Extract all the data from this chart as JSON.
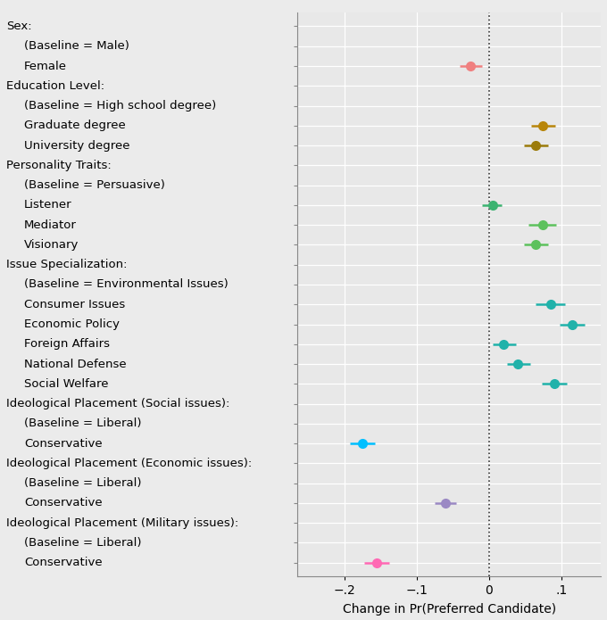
{
  "labels": [
    "Sex:",
    "  (Baseline = Male)",
    "  Female",
    "Education Level:",
    "  (Baseline = High school degree)",
    "  Graduate degree",
    "  University degree",
    "Personality Traits:",
    "  (Baseline = Persuasive)",
    "  Listener",
    "  Mediator",
    "  Visionary",
    "Issue Specialization:",
    "  (Baseline = Environmental Issues)",
    "  Consumer Issues",
    "  Economic Policy",
    "  Foreign Affairs",
    "  National Defense",
    "  Social Welfare",
    "Ideological Placement (Social issues):",
    "  (Baseline = Liberal)",
    "  Conservative",
    "Ideological Placement (Economic issues):",
    "  (Baseline = Liberal)",
    "  Conservative",
    "Ideological Placement (Military issues):",
    "  (Baseline = Liberal)",
    "  Conservative"
  ],
  "points": [
    null,
    null,
    -0.025,
    null,
    null,
    0.075,
    0.065,
    null,
    null,
    0.005,
    0.075,
    0.065,
    null,
    null,
    0.085,
    0.115,
    0.02,
    0.04,
    0.09,
    null,
    null,
    -0.175,
    null,
    null,
    -0.06,
    null,
    null,
    -0.155
  ],
  "ci_low": [
    null,
    null,
    -0.04,
    null,
    null,
    0.058,
    0.048,
    null,
    null,
    -0.01,
    0.055,
    0.048,
    null,
    null,
    0.065,
    0.098,
    0.005,
    0.025,
    0.073,
    null,
    null,
    -0.192,
    null,
    null,
    -0.075,
    null,
    null,
    -0.172
  ],
  "ci_high": [
    null,
    null,
    -0.01,
    null,
    null,
    0.092,
    0.082,
    null,
    null,
    0.018,
    0.093,
    0.082,
    null,
    null,
    0.105,
    0.133,
    0.038,
    0.057,
    0.108,
    null,
    null,
    -0.158,
    null,
    null,
    -0.045,
    null,
    null,
    -0.138
  ],
  "colors": [
    null,
    null,
    "#F08080",
    null,
    null,
    "#B8860B",
    "#9B7B0B",
    null,
    null,
    "#3CB371",
    "#5DC15D",
    "#5DC15D",
    null,
    null,
    "#20B2AA",
    "#20B2AA",
    "#20B2AA",
    "#20B2AA",
    "#20B2AA",
    null,
    null,
    "#00BFFF",
    null,
    null,
    "#9B89C4",
    null,
    null,
    "#FF69B4"
  ],
  "xlim": [
    -0.265,
    0.155
  ],
  "xticks": [
    -0.2,
    -0.1,
    0.0,
    0.1
  ],
  "xtick_labels": [
    "−.2",
    "−.1",
    "0",
    ".1"
  ],
  "xlabel": "Change in Pr(Preferred Candidate)",
  "plot_bg_color": "#E8E8E8",
  "fig_bg_color": "#EBEBEB",
  "white": "#FFFFFF"
}
